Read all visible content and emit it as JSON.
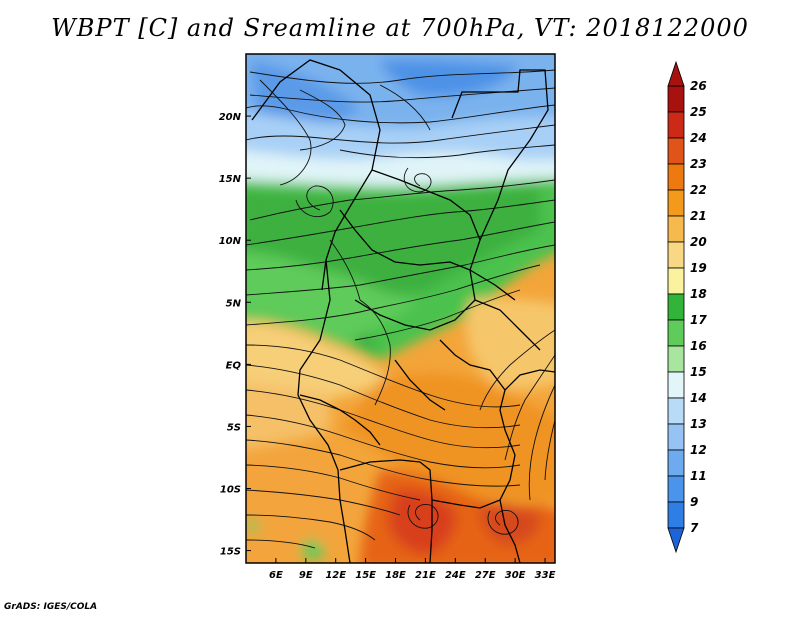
{
  "title": "WBPT [C] and Sreamline at 700hPa, VT: 2018122000",
  "footer": "GrADS: IGES/COLA",
  "map": {
    "variable": "Wet-bulb potential temperature",
    "unit": "C",
    "level": "700hPa",
    "valid_time": "2018122000",
    "lon_range": [
      3,
      34
    ],
    "lat_range": [
      -16,
      25
    ],
    "lon_ticks": [
      "6E",
      "9E",
      "12E",
      "15E",
      "18E",
      "21E",
      "24E",
      "27E",
      "30E",
      "33E"
    ],
    "lon_tick_values": [
      6,
      9,
      12,
      15,
      18,
      21,
      24,
      27,
      30,
      33
    ],
    "lat_ticks": [
      "20N",
      "15N",
      "10N",
      "5N",
      "EQ",
      "5S",
      "10S",
      "15S"
    ],
    "lat_tick_values": [
      20,
      15,
      10,
      5,
      0,
      -5,
      -10,
      -15
    ]
  },
  "colorbar": {
    "labels": [
      "7",
      "9",
      "11",
      "12",
      "13",
      "14",
      "15",
      "16",
      "17",
      "18",
      "19",
      "20",
      "21",
      "22",
      "23",
      "24",
      "25",
      "26"
    ],
    "colors": [
      "#1c64d8",
      "#2e7ee6",
      "#4a94ec",
      "#6eaaf0",
      "#96c2f4",
      "#b8dcf8",
      "#e2f6fa",
      "#a8e6a0",
      "#5ecb5a",
      "#32b43a",
      "#fbf2a0",
      "#f8d884",
      "#f6b94e",
      "#f39a1c",
      "#ec7a10",
      "#e0541a",
      "#cc2a16",
      "#a8120e"
    ]
  }
}
